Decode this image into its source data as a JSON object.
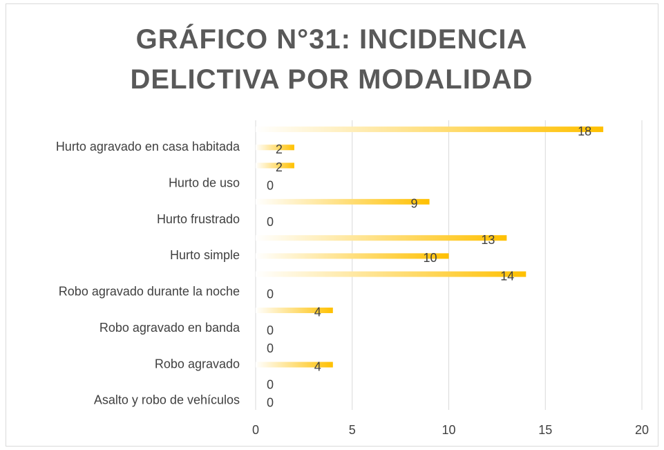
{
  "chart_data": {
    "type": "bar",
    "orientation": "horizontal",
    "title": "GRÁFICO N°31: INCIDENCIA DELICTIVA POR MODALIDAD",
    "categories": [
      null,
      "Hurto agravado en casa habitada",
      null,
      "Hurto de uso",
      null,
      "Hurto frustrado",
      null,
      "Hurto simple",
      null,
      "Robo agravado durante la noche",
      null,
      "Robo agravado en banda",
      null,
      "Robo agravado",
      null,
      "Asalto y robo de vehículos"
    ],
    "values": [
      18,
      2,
      2,
      0,
      9,
      0,
      13,
      10,
      14,
      0,
      4,
      0,
      0,
      4,
      0,
      0
    ],
    "color": "#ffc000",
    "xlim": [
      0,
      20
    ],
    "xticks": [
      0,
      5,
      10,
      15,
      20
    ],
    "grid": true
  }
}
